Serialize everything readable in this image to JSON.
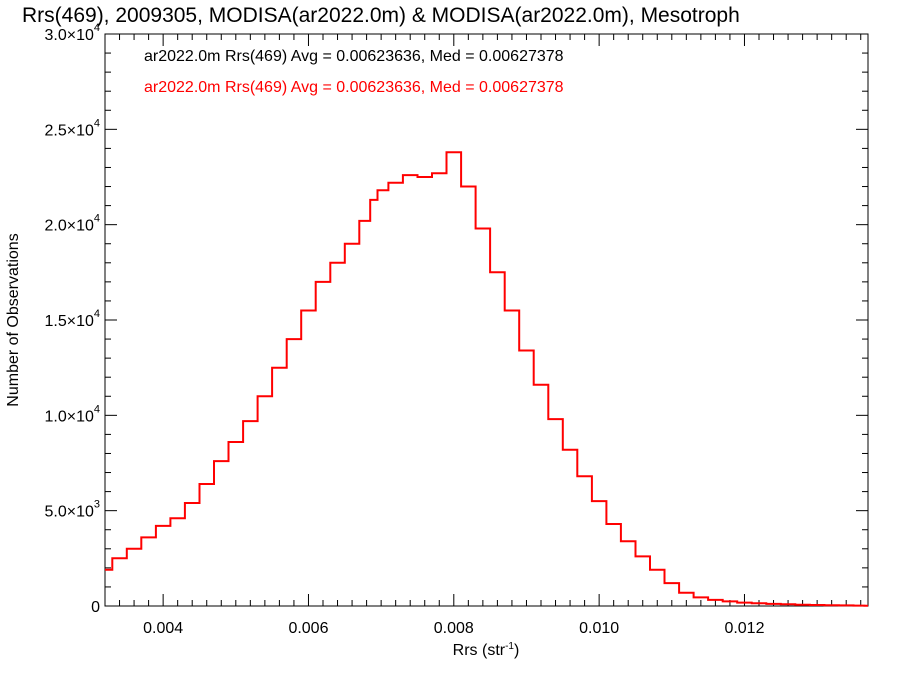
{
  "chart_data": {
    "type": "line",
    "title": "Rrs(469), 2009305, MODISA(ar2022.0m) & MODISA(ar2022.0m), Mesotroph",
    "xlabel": "Rrs (str",
    "xlabel_sup": "-1",
    "xlabel_close": ")",
    "ylabel": "Number of Observations",
    "xlim": [
      0.0032,
      0.0137
    ],
    "ylim": [
      0,
      30000
    ],
    "x_ticks": [
      {
        "value": 0.004,
        "label": "0.004"
      },
      {
        "value": 0.006,
        "label": "0.006"
      },
      {
        "value": 0.008,
        "label": "0.008"
      },
      {
        "value": 0.01,
        "label": "0.010"
      },
      {
        "value": 0.012,
        "label": "0.012"
      }
    ],
    "y_ticks": [
      {
        "value": 0,
        "mant": "0",
        "exp": ""
      },
      {
        "value": 5000,
        "mant": "5.0×10",
        "exp": "3"
      },
      {
        "value": 10000,
        "mant": "1.0×10",
        "exp": "4"
      },
      {
        "value": 15000,
        "mant": "1.5×10",
        "exp": "4"
      },
      {
        "value": 20000,
        "mant": "2.0×10",
        "exp": "4"
      },
      {
        "value": 25000,
        "mant": "2.5×10",
        "exp": "4"
      },
      {
        "value": 30000,
        "mant": "3.0×10",
        "exp": "4"
      }
    ],
    "legend": [
      {
        "text": "ar2022.0m Rrs(469) Avg = 0.00623636, Med = 0.00627378",
        "color": "#000000"
      },
      {
        "text": "ar2022.0m Rrs(469) Avg = 0.00623636, Med = 0.00627378",
        "color": "#ff0000"
      }
    ],
    "series": [
      {
        "color": "#ff0000",
        "style": "step",
        "x": [
          0.0032,
          0.0034,
          0.0036,
          0.0038,
          0.004,
          0.0042,
          0.0044,
          0.0046,
          0.0048,
          0.005,
          0.0052,
          0.0054,
          0.0056,
          0.0058,
          0.006,
          0.0062,
          0.0064,
          0.0066,
          0.0068,
          0.0069,
          0.007,
          0.0072,
          0.0074,
          0.0076,
          0.0078,
          0.008,
          0.0082,
          0.0084,
          0.0086,
          0.0088,
          0.009,
          0.0092,
          0.0094,
          0.0096,
          0.0098,
          0.01,
          0.0102,
          0.0104,
          0.0106,
          0.0108,
          0.011,
          0.0112,
          0.0114,
          0.0116,
          0.0118,
          0.012,
          0.0122,
          0.0124,
          0.0126,
          0.0128,
          0.013,
          0.0132,
          0.0134,
          0.0136,
          0.0137
        ],
        "y": [
          1900,
          2500,
          3000,
          3600,
          4200,
          4600,
          5400,
          6400,
          7600,
          8600,
          9700,
          11000,
          12500,
          14000,
          15500,
          17000,
          18000,
          19000,
          20200,
          21300,
          21800,
          22200,
          22600,
          22500,
          22700,
          23800,
          22000,
          19800,
          17500,
          15500,
          13400,
          11600,
          9800,
          8200,
          6800,
          5500,
          4300,
          3400,
          2600,
          1900,
          1200,
          700,
          450,
          320,
          240,
          180,
          140,
          110,
          90,
          70,
          50,
          40,
          30,
          20,
          15
        ]
      }
    ]
  }
}
